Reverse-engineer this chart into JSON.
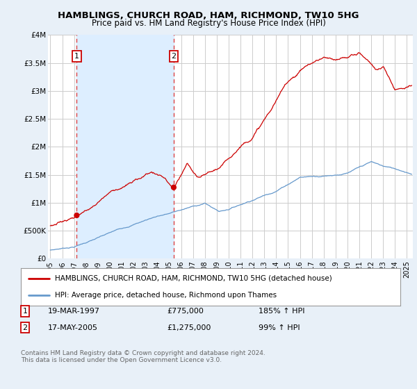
{
  "title": "HAMBLINGS, CHURCH ROAD, HAM, RICHMOND, TW10 5HG",
  "subtitle": "Price paid vs. HM Land Registry's House Price Index (HPI)",
  "ylim": [
    0,
    4000000
  ],
  "yticks": [
    0,
    500000,
    1000000,
    1500000,
    2000000,
    2500000,
    3000000,
    3500000,
    4000000
  ],
  "ytick_labels": [
    "£0",
    "£500K",
    "£1M",
    "£1.5M",
    "£2M",
    "£2.5M",
    "£3M",
    "£3.5M",
    "£4M"
  ],
  "xlim_start": 1994.8,
  "xlim_end": 2025.5,
  "xtick_years": [
    1995,
    1996,
    1997,
    1998,
    1999,
    2000,
    2001,
    2002,
    2003,
    2004,
    2005,
    2006,
    2007,
    2008,
    2009,
    2010,
    2011,
    2012,
    2013,
    2014,
    2015,
    2016,
    2017,
    2018,
    2019,
    2020,
    2021,
    2022,
    2023,
    2024,
    2025
  ],
  "sale1_x": 1997.22,
  "sale1_y": 775000,
  "sale2_x": 2005.38,
  "sale2_y": 1275000,
  "legend_line1": "HAMBLINGS, CHURCH ROAD, HAM, RICHMOND, TW10 5HG (detached house)",
  "legend_line2": "HPI: Average price, detached house, Richmond upon Thames",
  "footnote": "Contains HM Land Registry data © Crown copyright and database right 2024.\nThis data is licensed under the Open Government Licence v3.0.",
  "price_line_color": "#cc0000",
  "hpi_line_color": "#6699cc",
  "bg_color": "#e8f0f8",
  "plot_bg_color": "#ffffff",
  "grid_color": "#cccccc",
  "dashed_line_color": "#dd4444",
  "shade_color": "#ddeeff"
}
